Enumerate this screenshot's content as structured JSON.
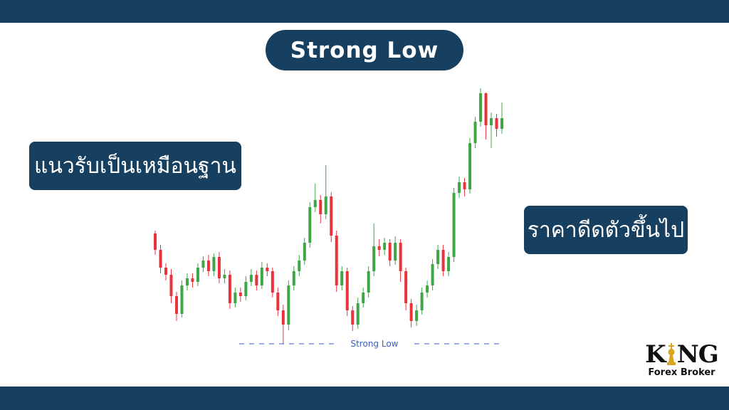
{
  "title": "Strong Low",
  "left_box": "แนวรับเป็นเหมือนฐาน",
  "right_box": "ราคาดีดตัวขึ้นไป",
  "logo": {
    "left": "K",
    "right": "NG",
    "subtitle": "Forex Broker"
  },
  "chart_data": {
    "type": "candlestick",
    "up_color": "#3fa648",
    "down_color": "#e8323c",
    "ylim": [
      80,
      460
    ],
    "levels": [
      {
        "value": 93,
        "label": "Strong Low",
        "color": "#3b5fc0"
      }
    ],
    "ohlc": [
      [
        248,
        252,
        218,
        225
      ],
      [
        225,
        232,
        192,
        200
      ],
      [
        200,
        206,
        182,
        190
      ],
      [
        190,
        198,
        150,
        160
      ],
      [
        160,
        166,
        125,
        135
      ],
      [
        135,
        182,
        130,
        175
      ],
      [
        175,
        192,
        168,
        185
      ],
      [
        185,
        192,
        172,
        180
      ],
      [
        180,
        206,
        174,
        200
      ],
      [
        200,
        216,
        194,
        210
      ],
      [
        210,
        218,
        188,
        195
      ],
      [
        195,
        220,
        188,
        215
      ],
      [
        215,
        222,
        178,
        185
      ],
      [
        185,
        198,
        178,
        190
      ],
      [
        190,
        196,
        142,
        150
      ],
      [
        150,
        172,
        144,
        165
      ],
      [
        165,
        172,
        152,
        160
      ],
      [
        160,
        188,
        154,
        180
      ],
      [
        180,
        198,
        174,
        190
      ],
      [
        190,
        196,
        168,
        175
      ],
      [
        175,
        208,
        170,
        200
      ],
      [
        200,
        206,
        188,
        195
      ],
      [
        195,
        200,
        158,
        165
      ],
      [
        165,
        172,
        132,
        140
      ],
      [
        140,
        148,
        93,
        120
      ],
      [
        120,
        182,
        112,
        175
      ],
      [
        175,
        202,
        168,
        195
      ],
      [
        195,
        218,
        188,
        210
      ],
      [
        210,
        242,
        204,
        235
      ],
      [
        235,
        292,
        228,
        285
      ],
      [
        285,
        318,
        278,
        295
      ],
      [
        295,
        302,
        262,
        275
      ],
      [
        275,
        344,
        268,
        300
      ],
      [
        300,
        306,
        236,
        245
      ],
      [
        245,
        252,
        166,
        175
      ],
      [
        175,
        202,
        168,
        195
      ],
      [
        195,
        200,
        132,
        140
      ],
      [
        140,
        146,
        111,
        120
      ],
      [
        120,
        158,
        114,
        150
      ],
      [
        150,
        172,
        144,
        165
      ],
      [
        165,
        202,
        158,
        195
      ],
      [
        195,
        262,
        188,
        230
      ],
      [
        230,
        240,
        216,
        225
      ],
      [
        225,
        242,
        218,
        235
      ],
      [
        235,
        240,
        202,
        210
      ],
      [
        210,
        244,
        204,
        235
      ],
      [
        235,
        240,
        180,
        195
      ],
      [
        195,
        200,
        140,
        150
      ],
      [
        150,
        156,
        116,
        125
      ],
      [
        125,
        148,
        118,
        140
      ],
      [
        140,
        172,
        134,
        165
      ],
      [
        165,
        182,
        158,
        175
      ],
      [
        175,
        212,
        168,
        205
      ],
      [
        205,
        232,
        198,
        225
      ],
      [
        225,
        232,
        188,
        195
      ],
      [
        195,
        222,
        188,
        215
      ],
      [
        215,
        312,
        208,
        305
      ],
      [
        305,
        328,
        298,
        320
      ],
      [
        320,
        326,
        300,
        310
      ],
      [
        310,
        382,
        304,
        375
      ],
      [
        375,
        412,
        368,
        405
      ],
      [
        405,
        452,
        398,
        445
      ],
      [
        445,
        446,
        380,
        400
      ],
      [
        400,
        418,
        368,
        410
      ],
      [
        410,
        416,
        384,
        395
      ],
      [
        395,
        432,
        388,
        410
      ]
    ]
  }
}
